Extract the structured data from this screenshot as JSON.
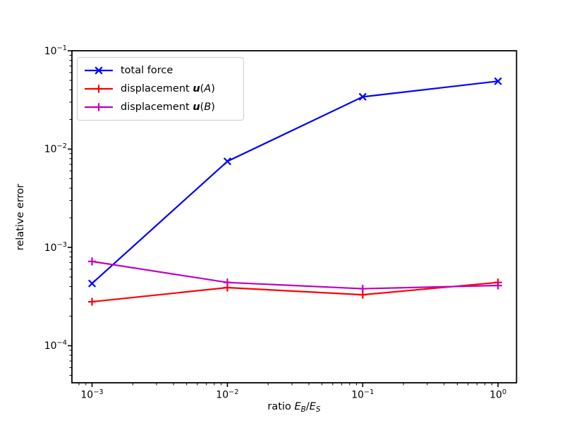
{
  "figure": {
    "background": "#ffffff",
    "text_color": "#000000",
    "spine_color": "#000000"
  },
  "chart_data": {
    "type": "line",
    "xscale": "log",
    "yscale": "log",
    "xlabel": "ratio E_B/E_S",
    "ylabel": "relative error",
    "grid": false,
    "legend_position": "upper left",
    "x": [
      0.001,
      0.01,
      0.1,
      1.0
    ],
    "series": [
      {
        "name": "total force",
        "color": "#0000ff",
        "marker": "x",
        "values": [
          0.00043,
          0.0075,
          0.034,
          0.049
        ]
      },
      {
        "name": "displacement u(A)",
        "color": "#ff0000",
        "marker": "+",
        "values": [
          0.00028,
          0.00039,
          0.00033,
          0.00044
        ]
      },
      {
        "name": "displacement u(B)",
        "color": "#bf00bf",
        "marker": "+",
        "values": [
          0.00072,
          0.00044,
          0.00038,
          0.00041
        ]
      }
    ],
    "xlim": [
      0.00071,
      1.37
    ],
    "ylim": [
      4.2e-05,
      0.1
    ],
    "x_tick_values": [
      0.001,
      0.01,
      0.1,
      1.0
    ],
    "y_tick_values": [
      0.1,
      0.01,
      0.001,
      0.0001
    ],
    "x_tick_labels": [
      {
        "base": "10",
        "exp": "−3"
      },
      {
        "base": "10",
        "exp": "−2"
      },
      {
        "base": "10",
        "exp": "−1"
      },
      {
        "base": "10",
        "exp": "0"
      }
    ],
    "y_tick_labels": [
      {
        "base": "10",
        "exp": "−1"
      },
      {
        "base": "10",
        "exp": "−2"
      },
      {
        "base": "10",
        "exp": "−3"
      },
      {
        "base": "10",
        "exp": "−4"
      }
    ],
    "xlabel_parts": [
      {
        "t": "ratio "
      },
      {
        "t": "E",
        "style": "italic"
      },
      {
        "t": "B",
        "style": "subitalic"
      },
      {
        "t": "/"
      },
      {
        "t": "E",
        "style": "italic"
      },
      {
        "t": "S",
        "style": "subitalic"
      }
    ]
  },
  "legend": {
    "items": [
      {
        "color": "#0000ff",
        "marker": "x",
        "label_parts": [
          {
            "t": "total force"
          }
        ]
      },
      {
        "color": "#ff0000",
        "marker": "+",
        "label_parts": [
          {
            "t": "displacement "
          },
          {
            "t": "u",
            "style": "bolditalic"
          },
          {
            "t": "("
          },
          {
            "t": "A",
            "style": "italic"
          },
          {
            "t": ")"
          }
        ]
      },
      {
        "color": "#bf00bf",
        "marker": "+",
        "label_parts": [
          {
            "t": "displacement "
          },
          {
            "t": "u",
            "style": "bolditalic"
          },
          {
            "t": "("
          },
          {
            "t": "B",
            "style": "italic"
          },
          {
            "t": ")"
          }
        ]
      }
    ]
  }
}
